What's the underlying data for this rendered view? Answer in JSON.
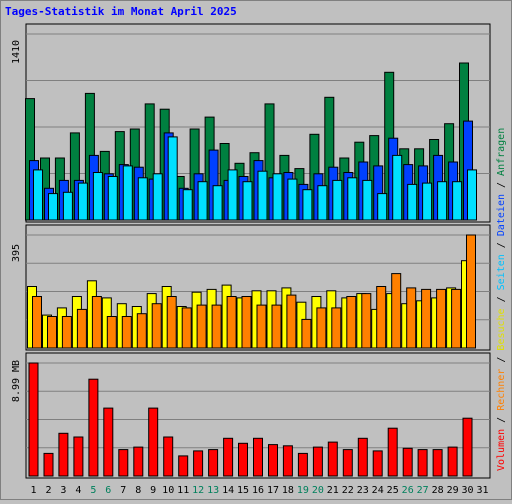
{
  "title": "Tages-Statistik im Monat April 2025",
  "colors": {
    "background": "#c0c0c0",
    "title": "#0000ff",
    "grid": "#808080",
    "hits": "#008040",
    "files": "#0040ff",
    "pages": "#00e0ff",
    "visits": "#ffff00",
    "sites": "#ff8000",
    "kbytes": "#ff0000",
    "weekend_label": "#00805c",
    "weekday_label": "#000000"
  },
  "right_legend": {
    "top": [
      {
        "text": "Anfragen",
        "color": "#008040"
      },
      {
        "text": " / ",
        "color": "#000000"
      },
      {
        "text": "Dateien",
        "color": "#0040ff"
      },
      {
        "text": " / ",
        "color": "#000000"
      },
      {
        "text": "Seiten",
        "color": "#00c0ff"
      },
      {
        "text": " / ",
        "color": "#000000"
      },
      {
        "text": "Besuche",
        "color": "#e0e000"
      },
      {
        "text": " / ",
        "color": "#000000"
      },
      {
        "text": "Rechner",
        "color": "#ff8000"
      },
      {
        "text": " / ",
        "color": "#000000"
      },
      {
        "text": "Volumen",
        "color": "#ff0000"
      }
    ]
  },
  "chart_data": [
    {
      "type": "bar",
      "panel": "hits-files-pages",
      "y_max_label": "1410",
      "ylim": [
        0,
        1410
      ],
      "grid": true,
      "categories": [
        "1",
        "2",
        "3",
        "4",
        "5",
        "6",
        "7",
        "8",
        "9",
        "10",
        "11",
        "12",
        "13",
        "14",
        "15",
        "16",
        "17",
        "18",
        "19",
        "20",
        "21",
        "22",
        "23",
        "24",
        "25",
        "26",
        "27",
        "28",
        "29",
        "30",
        "31"
      ],
      "weekend_days": [
        "5",
        "6",
        "12",
        "13",
        "19",
        "20",
        "26",
        "27"
      ],
      "series": [
        {
          "name": "Anfragen",
          "values": [
            920,
            470,
            470,
            660,
            960,
            520,
            670,
            690,
            880,
            840,
            330,
            690,
            780,
            580,
            430,
            510,
            880,
            490,
            390,
            650,
            930,
            470,
            590,
            640,
            1120,
            540,
            540,
            610,
            730,
            1190,
            null
          ]
        },
        {
          "name": "Dateien",
          "values": [
            450,
            240,
            300,
            300,
            490,
            350,
            420,
            400,
            310,
            660,
            240,
            350,
            530,
            300,
            330,
            450,
            320,
            360,
            270,
            350,
            400,
            360,
            440,
            410,
            620,
            420,
            410,
            490,
            440,
            750,
            null
          ]
        },
        {
          "name": "Seiten",
          "values": [
            380,
            200,
            210,
            280,
            360,
            330,
            410,
            320,
            350,
            630,
            230,
            290,
            260,
            380,
            290,
            370,
            350,
            310,
            230,
            260,
            300,
            320,
            300,
            200,
            490,
            270,
            280,
            290,
            290,
            380,
            null
          ]
        }
      ]
    },
    {
      "type": "bar",
      "panel": "visits-sites",
      "y_max_label": "395",
      "ylim": [
        0,
        395
      ],
      "grid": true,
      "categories": [
        "1",
        "2",
        "3",
        "4",
        "5",
        "6",
        "7",
        "8",
        "9",
        "10",
        "11",
        "12",
        "13",
        "14",
        "15",
        "16",
        "17",
        "18",
        "19",
        "20",
        "21",
        "22",
        "23",
        "24",
        "25",
        "26",
        "27",
        "28",
        "29",
        "30",
        "31"
      ],
      "series": [
        {
          "name": "Besuche",
          "values": [
            215,
            115,
            140,
            180,
            235,
            175,
            155,
            145,
            190,
            215,
            145,
            195,
            205,
            220,
            175,
            200,
            200,
            210,
            160,
            180,
            200,
            175,
            190,
            135,
            190,
            155,
            165,
            175,
            210,
            305,
            null
          ]
        },
        {
          "name": "Rechner",
          "values": [
            180,
            110,
            110,
            135,
            180,
            110,
            110,
            120,
            155,
            180,
            140,
            150,
            150,
            180,
            180,
            150,
            150,
            185,
            100,
            140,
            140,
            180,
            190,
            215,
            260,
            210,
            205,
            205,
            205,
            395,
            null
          ]
        }
      ]
    },
    {
      "type": "bar",
      "panel": "kbytes",
      "y_max_label": "8.99 MB",
      "ylim": [
        0,
        8.99
      ],
      "grid": true,
      "categories": [
        "1",
        "2",
        "3",
        "4",
        "5",
        "6",
        "7",
        "8",
        "9",
        "10",
        "11",
        "12",
        "13",
        "14",
        "15",
        "16",
        "17",
        "18",
        "19",
        "20",
        "21",
        "22",
        "23",
        "24",
        "25",
        "26",
        "27",
        "28",
        "29",
        "30",
        "31"
      ],
      "series": [
        {
          "name": "Volumen",
          "values": [
            8.99,
            1.8,
            3.4,
            3.1,
            7.7,
            5.4,
            2.1,
            2.3,
            5.4,
            3.1,
            1.6,
            2.0,
            2.1,
            3.0,
            2.6,
            3.0,
            2.5,
            2.4,
            1.8,
            2.3,
            2.7,
            2.1,
            3.0,
            2.0,
            3.8,
            2.2,
            2.1,
            2.1,
            2.3,
            4.6,
            null
          ]
        }
      ]
    }
  ]
}
